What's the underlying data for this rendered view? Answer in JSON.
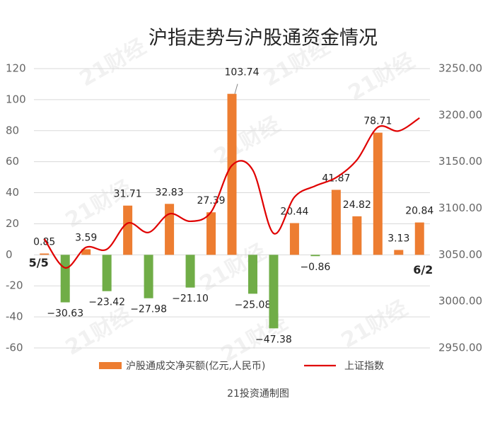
{
  "chart_data": {
    "type": "bar_line",
    "title": "沪指走势与沪股通资金情况",
    "source": "21投资通制图",
    "watermark": "21财经",
    "categories": [
      "5/5",
      null,
      null,
      null,
      null,
      null,
      null,
      null,
      null,
      null,
      null,
      null,
      null,
      null,
      null,
      null,
      null,
      null,
      "6/2"
    ],
    "series": [
      {
        "name": "沪股通成交净买额(亿元,人民币)",
        "type": "bar",
        "color": "#ed7d31",
        "negative_color": "#70ad47",
        "values": [
          0.85,
          -30.63,
          3.59,
          -23.42,
          31.71,
          -27.98,
          32.83,
          -21.1,
          27.39,
          103.74,
          -25.08,
          -47.38,
          20.44,
          -0.86,
          41.87,
          24.82,
          78.71,
          3.13,
          20.84
        ],
        "value_labels": [
          "0.85",
          "−30.63",
          "3.59",
          "−23.42",
          "31.71",
          "−27.98",
          "32.83",
          "−21.10",
          "27.39",
          "103.74",
          "−25.08",
          "−47.38",
          "20.44",
          "−0.86",
          "41.87",
          "24.82",
          "78.71",
          "3.13",
          "20.84"
        ]
      },
      {
        "name": "上证指数",
        "type": "line",
        "color": "#e00000",
        "axis": "y2",
        "values": [
          3067,
          3036,
          3058,
          3056,
          3084,
          3074,
          3094,
          3086,
          3096,
          3146,
          3141,
          3073,
          3112,
          3124,
          3133,
          3152,
          3187,
          3183,
          3197
        ]
      }
    ],
    "ylim": [
      -60,
      120
    ],
    "yticks": [
      -60,
      -40,
      -20,
      0,
      20,
      40,
      60,
      80,
      100,
      120
    ],
    "y2lim": [
      2950,
      3250
    ],
    "y2ticks": [
      {
        "value": 2950,
        "label": "2950.00"
      },
      {
        "value": 3000,
        "label": "3000.00"
      },
      {
        "value": 3050,
        "label": "3050.00"
      },
      {
        "value": 3100,
        "label": "3100.00"
      },
      {
        "value": 3150,
        "label": "3150.00"
      },
      {
        "value": 3200,
        "label": "3200.00"
      },
      {
        "value": 3250,
        "label": "3250.00"
      }
    ],
    "grid": true
  }
}
